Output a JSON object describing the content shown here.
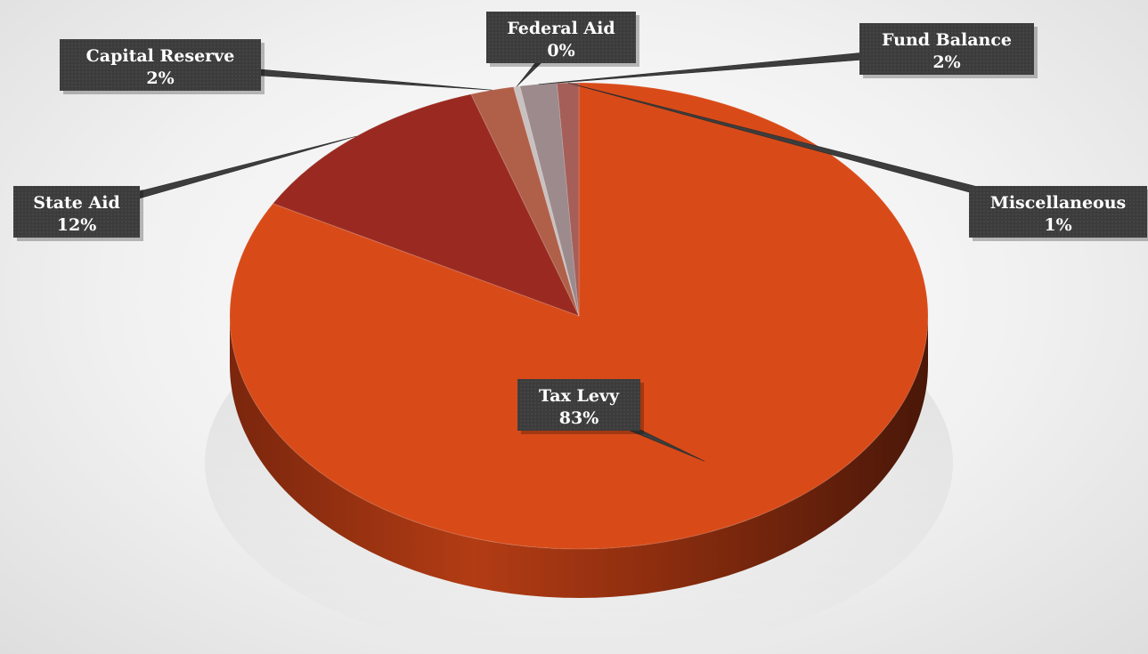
{
  "chart_data": {
    "type": "pie",
    "title": "",
    "series": [
      {
        "name": "Tax Levy",
        "value": 83,
        "label": "83%",
        "color": "#d84b19"
      },
      {
        "name": "State Aid",
        "value": 12,
        "label": "12%",
        "color": "#9a2a21"
      },
      {
        "name": "Capital Reserve",
        "value": 2,
        "label": "2%",
        "color": "#b06049"
      },
      {
        "name": "Federal Aid",
        "value": 0.3,
        "label": "0%",
        "color": "#c9c0c0"
      },
      {
        "name": "Fund Balance",
        "value": 1.7,
        "label": "2%",
        "color": "#9c8a8c"
      },
      {
        "name": "Miscellaneous",
        "value": 1,
        "label": "1%",
        "color": "#a55e58"
      }
    ],
    "style": "3d-pie",
    "legend": "none",
    "data_labels": "callouts"
  }
}
